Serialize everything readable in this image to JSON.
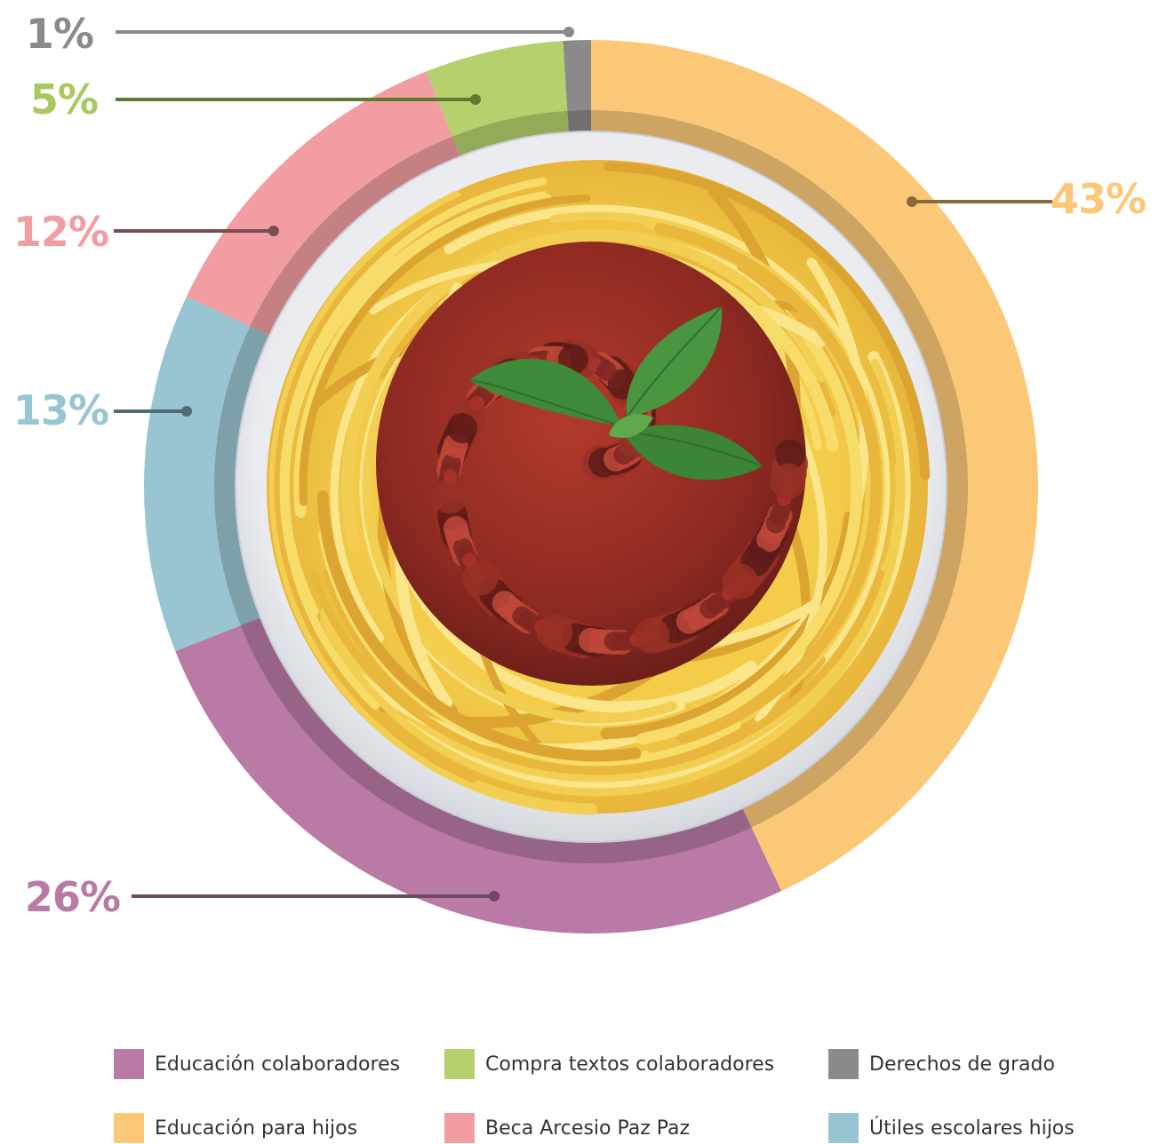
{
  "chart_data": {
    "type": "pie",
    "style": "donut",
    "categories": [
      "Educación para hijos",
      "Educación colaboradores",
      "Útiles escolares hijos",
      "Beca Arcesio Paz Paz",
      "Compra textos colaboradores",
      "Derechos de grado"
    ],
    "values": [
      43,
      26,
      13,
      12,
      5,
      1
    ],
    "value_labels": [
      "43%",
      "26%",
      "13%",
      "12%",
      "5%",
      "1%"
    ],
    "colors": [
      "#fbc877",
      "#b97aa5",
      "#99c4d1",
      "#f19da2",
      "#b5d06c",
      "#8a8a8a"
    ],
    "label_colors": [
      "#fbc877",
      "#b97aa5",
      "#99c4d1",
      "#f19da2",
      "#a9c85f",
      "#8a8a8a"
    ],
    "leader_colors": [
      "#8a6a3a",
      "#6e4a63",
      "#4f6d76",
      "#7a4d52",
      "#5f7a30",
      "#8a8a8a"
    ],
    "legend_position": "bottom",
    "center_image": "spaghetti-bolognese-plate"
  },
  "legend": {
    "items": [
      {
        "label": "Educación colaboradores",
        "color": "#b97aa5"
      },
      {
        "label": "Compra textos colaboradores",
        "color": "#b5d06c"
      },
      {
        "label": "Derechos de grado",
        "color": "#8a8a8a"
      },
      {
        "label": "Educación para hijos",
        "color": "#fbc877"
      },
      {
        "label": "Beca Arcesio Paz Paz",
        "color": "#f19da2"
      },
      {
        "label": "Útiles escolares hijos",
        "color": "#99c4d1"
      }
    ]
  }
}
